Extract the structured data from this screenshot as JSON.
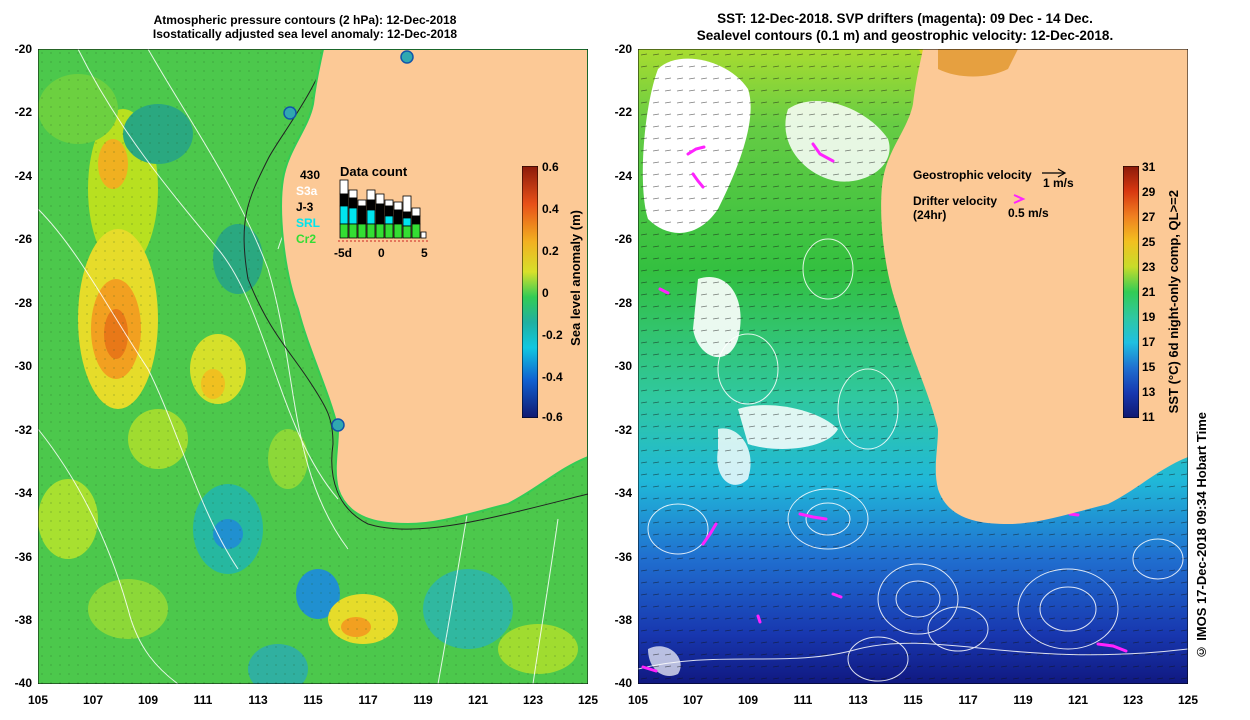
{
  "left_panel": {
    "title_line1": "Atmospheric pressure contours (2 hPa): 12-Dec-2018",
    "title_line2": "Isostatically adjusted sea level anomaly: 12-Dec-2018",
    "colorbar_label": "Sea level anomaly (m)",
    "colorbar_ticks": [
      "0.6",
      "0.4",
      "0.2",
      "0",
      "-0.2",
      "-0.4",
      "-0.6"
    ],
    "data_count": {
      "title": "Data count",
      "total": "430",
      "missions": [
        {
          "name": "S3a",
          "color": "#ffffff"
        },
        {
          "name": "J-3",
          "color": "#000000"
        },
        {
          "name": "SRL",
          "color": "#00e5ee"
        },
        {
          "name": "Cr2",
          "color": "#33dd33"
        }
      ],
      "x_ticks": [
        "-5d",
        "0",
        "5"
      ]
    }
  },
  "right_panel": {
    "title_line1": "SST: 12-Dec-2018. SVP drifters (magenta): 09 Dec - 14 Dec.",
    "title_line2": "Sealevel contours (0.1 m) and geostrophic velocity: 12-Dec-2018.",
    "geo_label": "Geostrophic velocity",
    "geo_speed": "1 m/s",
    "drifter_label_1": "Drifter velocity",
    "drifter_label_2": "(24hr)",
    "drifter_speed": "0.5 m/s",
    "colorbar_label": "SST (°C) 6d night-only comp, QL>=2",
    "colorbar_ticks": [
      "31",
      "29",
      "27",
      "25",
      "23",
      "21",
      "19",
      "17",
      "15",
      "13",
      "11"
    ]
  },
  "lat_ticks": [
    "-20",
    "-22",
    "-24",
    "-26",
    "-28",
    "-30",
    "-32",
    "-34",
    "-36",
    "-38",
    "-40"
  ],
  "lon_ticks": [
    "105",
    "107",
    "109",
    "111",
    "113",
    "115",
    "117",
    "119",
    "121",
    "123",
    "125"
  ],
  "copyright": "© IMOS 17-Dec-2018 09:34 Hobart Time",
  "colors": {
    "land": "#fcc996",
    "sea_green": "#33cc55",
    "magenta": "#ff22ff"
  }
}
